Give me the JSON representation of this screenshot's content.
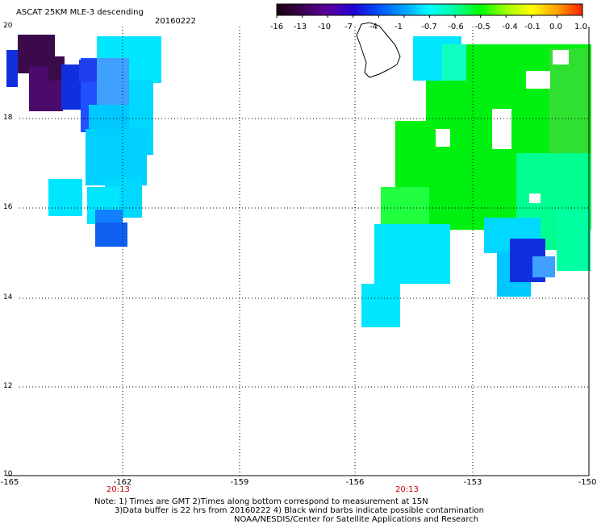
{
  "header": {
    "product_title": "ASCAT 25KM MLE-3 descending",
    "date": "20160222"
  },
  "colorbar": {
    "labels": [
      "-16",
      "-13",
      "-10",
      "-7",
      "-4",
      "-1",
      "-0.7",
      "-0.6",
      "-0.5",
      "-0.4",
      "-0.1",
      "0.0",
      "1.0"
    ],
    "colors": [
      "#1a0010",
      "#3a0050",
      "#5a00a0",
      "#2000d0",
      "#0050ff",
      "#00a0ff",
      "#00ffff",
      "#00ffa0",
      "#00ff00",
      "#a0ff00",
      "#ffff00",
      "#ffa000",
      "#ff2000"
    ]
  },
  "map": {
    "lat_labels": [
      "20",
      "18",
      "16",
      "14",
      "12",
      "10"
    ],
    "lon_labels": [
      "-165",
      "-162",
      "-159",
      "-156",
      "-153",
      "-150"
    ],
    "time_labels": [
      "20:13",
      "20:13"
    ]
  },
  "notes": {
    "line1": "Note: 1) Times are GMT 2)Times along bottom correspond to measurement at 15N",
    "line2": "3)Data buffer is 22 hrs from 20160222 4) Black wind barbs indicate possible contamination",
    "line3": "NOAA/NESDIS/Center for Satellite Applications and Research"
  },
  "colors": {
    "deep_purple": "#3a0a4a",
    "purple": "#4b0b6b",
    "blue": "#1030e0",
    "mid_blue": "#2060ff",
    "light_blue": "#40a0ff",
    "cyan": "#00e6ff",
    "green": "#00f010",
    "light_green": "#30ff60",
    "teal_green": "#00ff90"
  }
}
